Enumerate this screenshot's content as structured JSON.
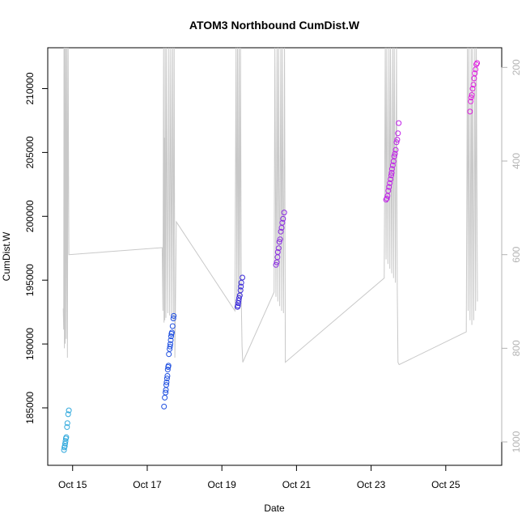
{
  "colors": {
    "frame": "#000000",
    "depth_line": "#c8c8c8",
    "right_axis_text": "#b3b3b3"
  },
  "chart_data": {
    "type": "scatter",
    "title": "ATOM3 Northbound CumDist.W",
    "xlabel": "Date",
    "ylabel": "CumDist.W",
    "x_unit": "date (October)",
    "xlim": [
      "Oct 14 08:00",
      "Oct 26 12:00"
    ],
    "ylim": [
      180500,
      213200
    ],
    "x_ticks": [
      {
        "day": 15,
        "label": "Oct 15"
      },
      {
        "day": 17,
        "label": "Oct 17"
      },
      {
        "day": 19,
        "label": "Oct 19"
      },
      {
        "day": 21,
        "label": "Oct 21"
      },
      {
        "day": 23,
        "label": "Oct 23"
      },
      {
        "day": 25,
        "label": "Oct 25"
      }
    ],
    "y_ticks": [
      185000,
      190000,
      195000,
      200000,
      205000,
      210000
    ],
    "y2_ticks": [
      200,
      400,
      600,
      800,
      1000
    ],
    "y2lim": [
      1050,
      158
    ],
    "y2_reversed": true,
    "grid": false,
    "legend": "none",
    "series": [
      {
        "color": "#2fa8dc",
        "points": [
          [
            14.77,
            181700
          ],
          [
            14.78,
            181900
          ],
          [
            14.79,
            182000
          ],
          [
            14.8,
            182200
          ],
          [
            14.81,
            182400
          ],
          [
            14.82,
            182600
          ],
          [
            14.83,
            182700
          ],
          [
            14.85,
            183500
          ],
          [
            14.86,
            183800
          ],
          [
            14.88,
            184500
          ],
          [
            14.9,
            184800
          ]
        ]
      },
      {
        "color": "#2050e0",
        "points": [
          [
            17.45,
            185100
          ],
          [
            17.47,
            185800
          ],
          [
            17.49,
            186200
          ],
          [
            17.5,
            186400
          ],
          [
            17.51,
            186800
          ],
          [
            17.52,
            187000
          ],
          [
            17.53,
            187300
          ],
          [
            17.54,
            187500
          ],
          [
            17.55,
            188000
          ],
          [
            17.56,
            188200
          ],
          [
            17.57,
            188300
          ],
          [
            17.58,
            189200
          ],
          [
            17.6,
            189600
          ],
          [
            17.61,
            189800
          ],
          [
            17.62,
            190000
          ],
          [
            17.63,
            190300
          ],
          [
            17.64,
            190600
          ],
          [
            17.65,
            190800
          ],
          [
            17.66,
            190900
          ],
          [
            17.68,
            191400
          ],
          [
            17.7,
            192000
          ],
          [
            17.71,
            192200
          ]
        ]
      },
      {
        "color": "#3a2ad8",
        "points": [
          [
            19.42,
            192900
          ],
          [
            19.43,
            193000
          ],
          [
            19.44,
            193200
          ],
          [
            19.45,
            193400
          ],
          [
            19.46,
            193600
          ],
          [
            19.48,
            193800
          ],
          [
            19.5,
            194200
          ],
          [
            19.51,
            194500
          ],
          [
            19.52,
            194800
          ],
          [
            19.55,
            195200
          ]
        ]
      },
      {
        "color": "#8a2be2",
        "points": [
          [
            20.45,
            196200
          ],
          [
            20.47,
            196400
          ],
          [
            20.49,
            196800
          ],
          [
            20.5,
            197200
          ],
          [
            20.52,
            197500
          ],
          [
            20.54,
            198000
          ],
          [
            20.56,
            198200
          ],
          [
            20.58,
            198800
          ],
          [
            20.6,
            199100
          ],
          [
            20.62,
            199500
          ],
          [
            20.64,
            199800
          ],
          [
            20.67,
            200300
          ]
        ]
      },
      {
        "color": "#c020e8",
        "points": [
          [
            23.4,
            201300
          ],
          [
            23.42,
            201400
          ],
          [
            23.44,
            201600
          ],
          [
            23.46,
            202000
          ],
          [
            23.48,
            202300
          ],
          [
            23.5,
            202600
          ],
          [
            23.52,
            202900
          ],
          [
            23.54,
            203200
          ],
          [
            23.55,
            203400
          ],
          [
            23.56,
            203700
          ],
          [
            23.58,
            204000
          ],
          [
            23.6,
            204300
          ],
          [
            23.62,
            204700
          ],
          [
            23.64,
            204900
          ],
          [
            23.66,
            205200
          ],
          [
            23.68,
            205800
          ],
          [
            23.7,
            206000
          ],
          [
            23.72,
            206500
          ],
          [
            23.74,
            207300
          ]
        ]
      },
      {
        "color": "#e020e0",
        "points": [
          [
            25.65,
            208200
          ],
          [
            25.67,
            209000
          ],
          [
            25.68,
            209300
          ],
          [
            25.7,
            209500
          ],
          [
            25.72,
            210000
          ],
          [
            25.74,
            210300
          ],
          [
            25.76,
            210800
          ],
          [
            25.78,
            211200
          ],
          [
            25.8,
            211500
          ],
          [
            25.82,
            211900
          ],
          [
            25.84,
            212000
          ]
        ]
      }
    ],
    "depth_line": [
      [
        14.75,
        715
      ],
      [
        14.76,
        760
      ],
      [
        14.77,
        90
      ],
      [
        14.78,
        800
      ],
      [
        14.79,
        90
      ],
      [
        14.8,
        790
      ],
      [
        14.82,
        90
      ],
      [
        14.83,
        780
      ],
      [
        14.85,
        90
      ],
      [
        14.86,
        820
      ],
      [
        14.88,
        90
      ],
      [
        14.9,
        600
      ],
      [
        17.4,
        585
      ],
      [
        17.42,
        720
      ],
      [
        17.44,
        90
      ],
      [
        17.45,
        745
      ],
      [
        17.46,
        350
      ],
      [
        17.47,
        740
      ],
      [
        17.48,
        90
      ],
      [
        17.5,
        735
      ],
      [
        17.52,
        90
      ],
      [
        17.55,
        725
      ],
      [
        17.58,
        90
      ],
      [
        17.6,
        730
      ],
      [
        17.63,
        90
      ],
      [
        17.65,
        735
      ],
      [
        17.68,
        90
      ],
      [
        17.7,
        740
      ],
      [
        17.72,
        90
      ],
      [
        17.74,
        820
      ],
      [
        17.78,
        530
      ],
      [
        19.35,
        720
      ],
      [
        19.38,
        90
      ],
      [
        19.4,
        700
      ],
      [
        19.42,
        90
      ],
      [
        19.44,
        690
      ],
      [
        19.46,
        90
      ],
      [
        19.48,
        690
      ],
      [
        19.5,
        90
      ],
      [
        19.52,
        700
      ],
      [
        19.54,
        795
      ],
      [
        19.56,
        830
      ],
      [
        20.4,
        680
      ],
      [
        20.42,
        90
      ],
      [
        20.45,
        690
      ],
      [
        20.48,
        90
      ],
      [
        20.5,
        700
      ],
      [
        20.52,
        90
      ],
      [
        20.55,
        710
      ],
      [
        20.58,
        90
      ],
      [
        20.6,
        720
      ],
      [
        20.62,
        90
      ],
      [
        20.65,
        725
      ],
      [
        20.68,
        90
      ],
      [
        20.7,
        830
      ],
      [
        23.35,
        650
      ],
      [
        23.38,
        90
      ],
      [
        23.4,
        610
      ],
      [
        23.42,
        90
      ],
      [
        23.45,
        620
      ],
      [
        23.48,
        90
      ],
      [
        23.5,
        630
      ],
      [
        23.52,
        90
      ],
      [
        23.55,
        640
      ],
      [
        23.58,
        90
      ],
      [
        23.6,
        650
      ],
      [
        23.62,
        90
      ],
      [
        23.65,
        660
      ],
      [
        23.68,
        90
      ],
      [
        23.7,
        670
      ],
      [
        23.72,
        830
      ],
      [
        23.75,
        835
      ],
      [
        25.55,
        765
      ],
      [
        25.58,
        90
      ],
      [
        25.6,
        720
      ],
      [
        25.62,
        90
      ],
      [
        25.65,
        740
      ],
      [
        25.68,
        90
      ],
      [
        25.7,
        750
      ],
      [
        25.72,
        90
      ],
      [
        25.75,
        740
      ],
      [
        25.78,
        90
      ],
      [
        25.8,
        720
      ],
      [
        25.82,
        90
      ],
      [
        25.85,
        700
      ]
    ]
  }
}
